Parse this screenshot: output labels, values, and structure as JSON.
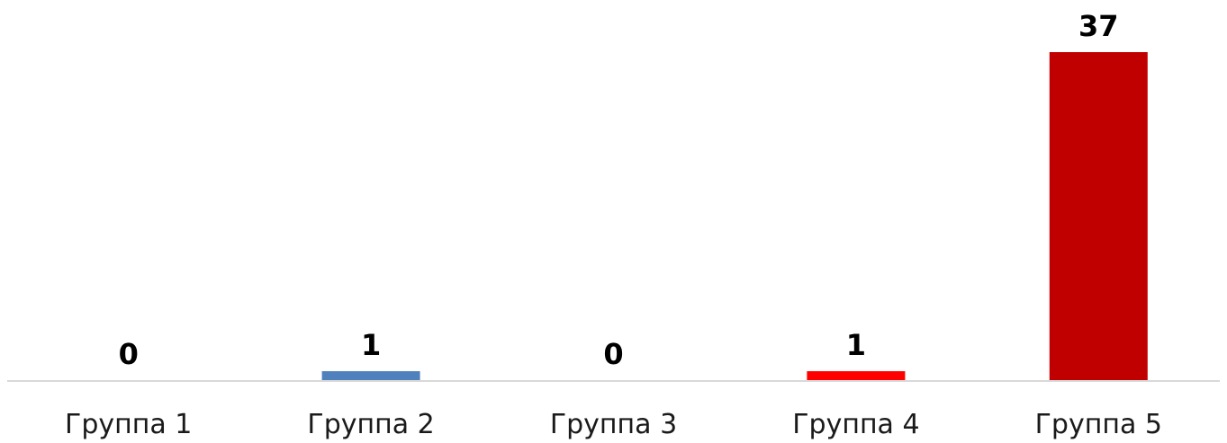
{
  "chart_data": {
    "type": "bar",
    "title": "",
    "xlabel": "",
    "ylabel": "",
    "categories": [
      "Группа 1",
      "Группа 2",
      "Группа 3",
      "Группа 4",
      "Группа 5"
    ],
    "values": [
      0,
      1,
      0,
      1,
      37
    ],
    "bar_colors": [
      "#4F81BD",
      "#4F81BD",
      "#4F81BD",
      "#FF0000",
      "#C00000"
    ],
    "axis_color": "#D9D9D9",
    "ylim": [
      0,
      37
    ],
    "grid": false,
    "legend": "none",
    "data_labels": true
  }
}
